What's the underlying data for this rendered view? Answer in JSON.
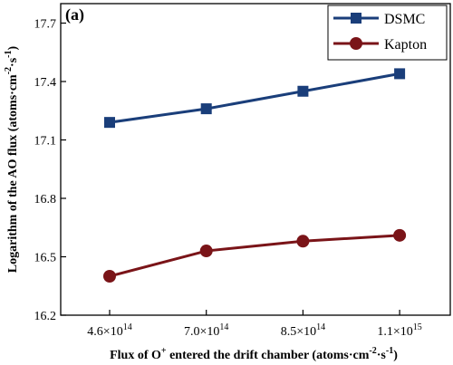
{
  "chart_data": {
    "type": "line",
    "panel_label": "(a)",
    "x_tick_labels": [
      {
        "mant": "4.6×10",
        "exp": "14"
      },
      {
        "mant": "7.0×10",
        "exp": "14"
      },
      {
        "mant": "8.5×10",
        "exp": "14"
      },
      {
        "mant": "1.1×10",
        "exp": "15"
      }
    ],
    "xlabel": {
      "pre": "Flux of O",
      "sup_ion": "+",
      "mid": " entered the drift chamber (atoms·cm",
      "sup1": "-2",
      "mid2": "·s",
      "sup2": "-1",
      "post": ")"
    },
    "ylabel": {
      "pre": "Logarithm of the AO flux (atoms·cm",
      "sup1": "-2",
      "mid": "·s",
      "sup2": "-1",
      "post": ")"
    },
    "ylim": [
      16.2,
      17.8
    ],
    "y_ticks": [
      16.2,
      16.5,
      16.8,
      17.1,
      17.4,
      17.7
    ],
    "grid": false,
    "legend_position": "top-right",
    "series": [
      {
        "name": "DSMC",
        "marker": "square",
        "color": "#1a3e7a",
        "values": [
          17.19,
          17.26,
          17.35,
          17.44
        ]
      },
      {
        "name": "Kapton",
        "marker": "circle",
        "color": "#7a1418",
        "values": [
          16.4,
          16.53,
          16.58,
          16.61
        ]
      }
    ]
  }
}
